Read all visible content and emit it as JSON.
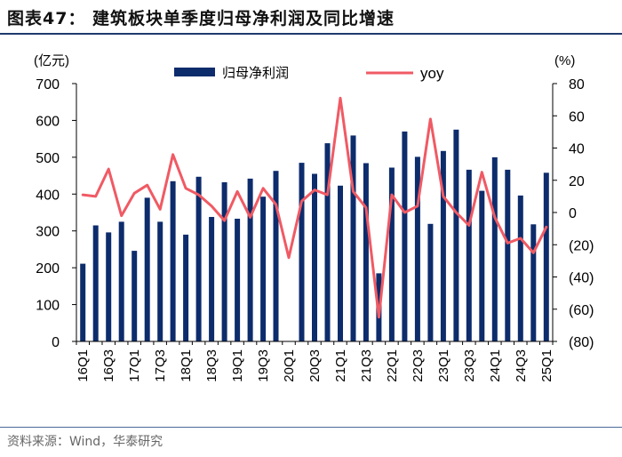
{
  "title": "图表47：  建筑板块单季度归母净利润及同比增速",
  "source": "资料来源：Wind，华泰研究",
  "colors": {
    "bar": "#0d2c6c",
    "line": "#f05a64",
    "axis": "#000000",
    "rule": "#1f3a6e"
  },
  "chart_data": {
    "type": "bar+line",
    "title": "建筑板块单季度归母净利润及同比增速",
    "left_unit": "(亿元)",
    "right_unit": "(%)",
    "left_ylim": [
      0,
      700
    ],
    "left_ticks": [
      "0",
      "100",
      "200",
      "300",
      "400",
      "500",
      "600",
      "700"
    ],
    "right_ylim": [
      -80,
      80
    ],
    "right_ticks": [
      "(80)",
      "(60)",
      "(40)",
      "(20)",
      "0",
      "20",
      "40",
      "60",
      "80"
    ],
    "categories": [
      "16Q1",
      "16Q2",
      "16Q3",
      "16Q4",
      "17Q1",
      "17Q2",
      "17Q3",
      "17Q4",
      "18Q1",
      "18Q2",
      "18Q3",
      "18Q4",
      "19Q1",
      "19Q2",
      "19Q3",
      "19Q4",
      "20Q1",
      "20Q2",
      "20Q3",
      "20Q4",
      "21Q1",
      "21Q2",
      "21Q3",
      "21Q4",
      "22Q1",
      "22Q2",
      "22Q3",
      "22Q4",
      "23Q1",
      "23Q2",
      "23Q3",
      "23Q4",
      "24Q1",
      "24Q2",
      "24Q3",
      "24Q4",
      "25Q1"
    ],
    "x_tick_labels": [
      "16Q1",
      "16Q3",
      "17Q1",
      "17Q3",
      "18Q1",
      "18Q3",
      "19Q1",
      "19Q3",
      "20Q1",
      "20Q3",
      "21Q1",
      "21Q3",
      "22Q1",
      "22Q3",
      "23Q1",
      "23Q3",
      "24Q1",
      "24Q3",
      "25Q1"
    ],
    "series": [
      {
        "name": "归母净利润",
        "type": "bar",
        "axis": "left",
        "values": [
          211,
          315,
          296,
          325,
          246,
          390,
          325,
          435,
          290,
          447,
          338,
          432,
          333,
          442,
          393,
          463,
          0,
          485,
          455,
          538,
          423,
          559,
          484,
          185,
          472,
          570,
          501,
          319,
          517,
          575,
          466,
          409,
          500,
          466,
          396,
          318,
          458
        ]
      },
      {
        "name": "yoy",
        "type": "line",
        "axis": "right",
        "values": [
          11,
          10,
          27,
          -2,
          12,
          17,
          2,
          36,
          15,
          11,
          4,
          -5,
          13,
          -3,
          15,
          5,
          -28,
          7,
          14,
          11,
          71,
          13,
          3,
          -65,
          11,
          0,
          4,
          58,
          10,
          0,
          -8,
          25,
          -3,
          -19,
          -16,
          -25,
          -9
        ]
      }
    ]
  }
}
